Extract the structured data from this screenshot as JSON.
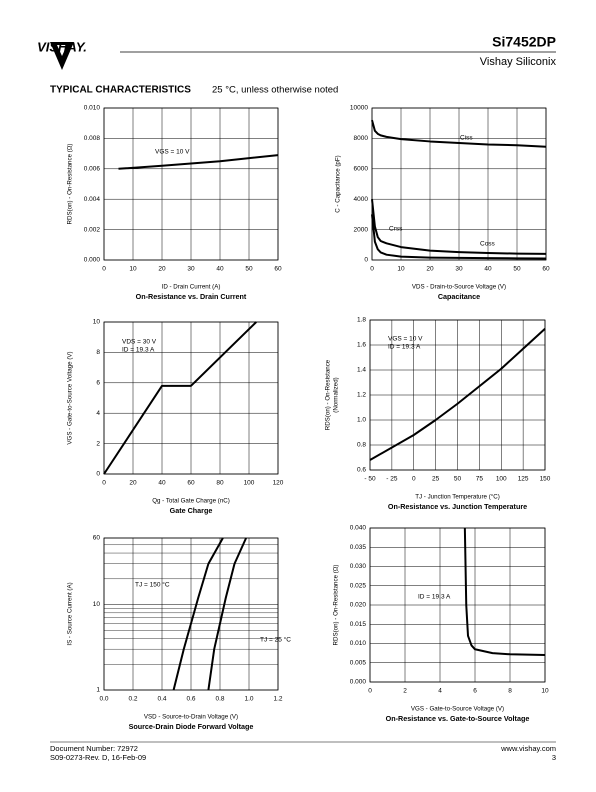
{
  "header": {
    "logo": "VISHAY.",
    "part": "Si7452DP",
    "company": "Vishay Siliconix"
  },
  "section": {
    "title": "TYPICAL CHARACTERISTICS",
    "note": "25 °C, unless otherwise noted"
  },
  "footer": {
    "doc": "Document Number: 72972",
    "rev": "S09-0273-Rev. D, 16-Feb-09",
    "url": "www.vishay.com",
    "page": "3"
  },
  "chart_data": [
    {
      "type": "line",
      "title": "On-Resistance vs. Drain Current",
      "xlabel": "ID - Drain Current (A)",
      "ylabel": [
        "RDS(on) - On-Resistance (Ω)"
      ],
      "annotations": [
        "VGS = 10 V"
      ],
      "grid": true,
      "x": [
        5,
        20,
        40,
        60
      ],
      "series": [
        {
          "name": "RDS(on)",
          "color": "#000000",
          "values": [
            0.006,
            0.0062,
            0.0065,
            0.0069
          ]
        }
      ],
      "xlim": [
        0,
        60
      ],
      "xticks": [
        0,
        10,
        20,
        30,
        40,
        50,
        60
      ],
      "ylim": [
        0,
        0.01
      ],
      "yticks": [
        {
          "value": 0,
          "label": "0.000"
        },
        {
          "value": 0.002,
          "label": "0.002"
        },
        {
          "value": 0.004,
          "label": "0.004"
        },
        {
          "value": 0.006,
          "label": "0.006"
        },
        {
          "value": 0.008,
          "label": "0.008"
        },
        {
          "value": 0.01,
          "label": "0.010"
        }
      ]
    },
    {
      "type": "line",
      "title": "Capacitance",
      "xlabel": "VDS - Drain-to-Source Voltage (V)",
      "ylabel": [
        "C - Capacitance (pF)"
      ],
      "annotations": [
        "Ciss",
        "Crss",
        "Coss"
      ],
      "grid": true,
      "x": [
        0,
        1,
        2,
        3,
        5,
        10,
        20,
        30,
        40,
        50,
        60
      ],
      "series": [
        {
          "name": "Ciss",
          "color": "#000000",
          "values": [
            9200,
            8500,
            8300,
            8200,
            8100,
            7950,
            7800,
            7700,
            7600,
            7550,
            7450
          ]
        },
        {
          "name": "Coss",
          "color": "#000000",
          "values": [
            4000,
            2200,
            1500,
            1250,
            1100,
            850,
            620,
            520,
            460,
            420,
            400
          ]
        },
        {
          "name": "Crss",
          "color": "#000000",
          "values": [
            3000,
            1200,
            700,
            500,
            350,
            220,
            160,
            140,
            120,
            110,
            100
          ]
        }
      ],
      "xlim": [
        0,
        60
      ],
      "xticks": [
        0,
        10,
        20,
        30,
        40,
        50,
        60
      ],
      "ylim": [
        0,
        10000
      ],
      "yticks": [
        0,
        2000,
        4000,
        6000,
        8000,
        10000
      ]
    },
    {
      "type": "line",
      "title": "Gate Charge",
      "xlabel": "Qg - Total Gate Charge (nC)",
      "ylabel": [
        "VGS - Gate-to-Source Voltage (V)"
      ],
      "annotations": [
        "VDS = 30 V",
        "ID = 19.3 A"
      ],
      "grid": true,
      "x": [
        0,
        40,
        60,
        105
      ],
      "series": [
        {
          "name": "VGS",
          "color": "#000000",
          "values": [
            0,
            5.8,
            5.8,
            10
          ]
        }
      ],
      "xlim": [
        0,
        120
      ],
      "xticks": [
        0,
        20,
        40,
        60,
        80,
        100,
        120
      ],
      "ylim": [
        0,
        10
      ],
      "yticks": [
        0,
        2,
        4,
        6,
        8,
        10
      ]
    },
    {
      "type": "line",
      "title": "On-Resistance vs. Junction Temperature",
      "xlabel": "TJ - Junction Temperature (°C)",
      "ylabel": [
        "RDS(on) - On-Resistance",
        "(Normalized)"
      ],
      "annotations": [
        "VGS = 10 V",
        "ID = 19.3 A"
      ],
      "grid": true,
      "x": [
        -50,
        0,
        25,
        50,
        75,
        100,
        125,
        150
      ],
      "series": [
        {
          "name": "RDS(on)",
          "color": "#000000",
          "values": [
            0.68,
            0.88,
            1.0,
            1.13,
            1.27,
            1.41,
            1.57,
            1.73
          ]
        }
      ],
      "xlim": [
        -50,
        150
      ],
      "xticks": [
        {
          "value": -50,
          "label": "- 50"
        },
        {
          "value": -25,
          "label": "- 25"
        },
        0,
        25,
        50,
        75,
        100,
        125,
        150
      ],
      "ylim": [
        0.6,
        1.8
      ],
      "yticks": [
        0.6,
        0.8,
        {
          "value": 1,
          "label": "1.0"
        },
        1.2,
        1.4,
        1.6,
        1.8
      ]
    },
    {
      "type": "line",
      "title": "Source-Drain Diode Forward Voltage",
      "xlabel": "VSD - Source-to-Drain Voltage (V)",
      "ylabel": [
        "IS - Source Current (A)"
      ],
      "annotations": [
        "TJ = 150 °C",
        "TJ = 25 °C"
      ],
      "grid": true,
      "yscale": "log",
      "yminor": [
        2,
        3,
        4,
        5,
        6,
        7,
        8,
        9,
        20,
        30,
        40,
        50
      ],
      "series": [
        {
          "name": "TJ = 150 °C",
          "color": "#000000",
          "x": [
            0.48,
            0.55,
            0.6,
            0.65,
            0.72,
            0.82
          ],
          "values": [
            1,
            3,
            6,
            12,
            30,
            60
          ]
        },
        {
          "name": "TJ = 25 °C",
          "color": "#000000",
          "x": [
            0.72,
            0.76,
            0.8,
            0.84,
            0.9,
            0.98
          ],
          "values": [
            1,
            3,
            6,
            12,
            30,
            60
          ]
        }
      ],
      "xlim": [
        0,
        1.2
      ],
      "xticks": [
        {
          "value": 0,
          "label": "0.0"
        },
        0.2,
        0.4,
        0.6,
        0.8,
        {
          "value": 1,
          "label": "1.0"
        },
        1.2
      ],
      "ylim": [
        1,
        60
      ],
      "yticks": [
        1,
        10,
        60
      ]
    },
    {
      "type": "line",
      "title": "On-Resistance vs. Gate-to-Source Voltage",
      "xlabel": "VGS - Gate-to-Source Voltage (V)",
      "ylabel": [
        "RDS(on) - On-Resistance (Ω)"
      ],
      "annotations": [
        "ID = 19.3 A"
      ],
      "grid": true,
      "x": [
        5.42,
        5.5,
        5.6,
        5.8,
        6,
        7,
        8,
        10
      ],
      "series": [
        {
          "name": "RDS(on)",
          "color": "#000000",
          "values": [
            0.04,
            0.02,
            0.012,
            0.0095,
            0.0085,
            0.0075,
            0.0072,
            0.007
          ]
        }
      ],
      "xlim": [
        0,
        10
      ],
      "xticks": [
        0,
        2,
        4,
        6,
        8,
        10
      ],
      "ylim": [
        0,
        0.04
      ],
      "yticks": [
        {
          "value": 0,
          "label": "0.000"
        },
        {
          "value": 0.005,
          "label": "0.005"
        },
        {
          "value": 0.01,
          "label": "0.010"
        },
        {
          "value": 0.015,
          "label": "0.015"
        },
        {
          "value": 0.02,
          "label": "0.020"
        },
        {
          "value": 0.025,
          "label": "0.025"
        },
        {
          "value": 0.03,
          "label": "0.030"
        },
        {
          "value": 0.035,
          "label": "0.035"
        },
        {
          "value": 0.04,
          "label": "0.040"
        }
      ]
    }
  ]
}
